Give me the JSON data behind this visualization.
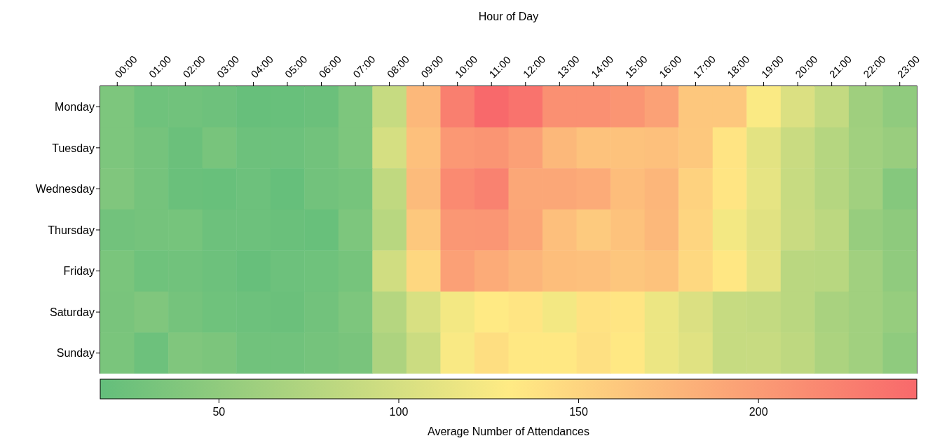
{
  "chart_data": {
    "type": "heatmap",
    "xlabel": "Hour of Day",
    "clabel": "Average Number of Attendances",
    "categories": [
      "00:00",
      "01:00",
      "02:00",
      "03:00",
      "04:00",
      "05:00",
      "06:00",
      "07:00",
      "08:00",
      "09:00",
      "10:00",
      "11:00",
      "12:00",
      "13:00",
      "14:00",
      "15:00",
      "16:00",
      "17:00",
      "18:00",
      "19:00",
      "20:00",
      "21:00",
      "22:00",
      "23:00"
    ],
    "y_categories": [
      "Monday",
      "Tuesday",
      "Wednesday",
      "Thursday",
      "Friday",
      "Saturday",
      "Sunday"
    ],
    "cells": [
      [
        36,
        26,
        27,
        25,
        20,
        21,
        23,
        36,
        89,
        175,
        225,
        244,
        235,
        210,
        210,
        206,
        195,
        162,
        162,
        127,
        104,
        87,
        61,
        50
      ],
      [
        36,
        30,
        23,
        32,
        24,
        24,
        28,
        36,
        100,
        168,
        203,
        206,
        196,
        175,
        166,
        166,
        168,
        161,
        137,
        110,
        91,
        77,
        62,
        56
      ],
      [
        38,
        30,
        22,
        21,
        24,
        19,
        28,
        31,
        85,
        172,
        215,
        222,
        190,
        190,
        186,
        171,
        177,
        152,
        136,
        112,
        90,
        77,
        62,
        42
      ],
      [
        28,
        30,
        31,
        24,
        24,
        22,
        21,
        36,
        79,
        161,
        204,
        205,
        192,
        169,
        159,
        166,
        175,
        150,
        122,
        109,
        91,
        82,
        55,
        48
      ],
      [
        34,
        26,
        27,
        24,
        20,
        24,
        26,
        31,
        96,
        148,
        196,
        186,
        178,
        170,
        168,
        163,
        166,
        147,
        134,
        111,
        80,
        79,
        62,
        50
      ],
      [
        33,
        38,
        30,
        26,
        24,
        23,
        28,
        36,
        77,
        102,
        122,
        131,
        136,
        122,
        138,
        136,
        117,
        104,
        89,
        87,
        80,
        68,
        62,
        54
      ],
      [
        34,
        24,
        38,
        35,
        27,
        27,
        30,
        33,
        71,
        93,
        126,
        142,
        133,
        133,
        140,
        133,
        117,
        108,
        89,
        90,
        83,
        70,
        62,
        49
      ]
    ],
    "colors": [
      "#63be7b",
      "#ffeb84",
      "#f8696b"
    ],
    "clim": [
      17,
      244
    ],
    "cticks": [
      50,
      100,
      150,
      200
    ]
  }
}
